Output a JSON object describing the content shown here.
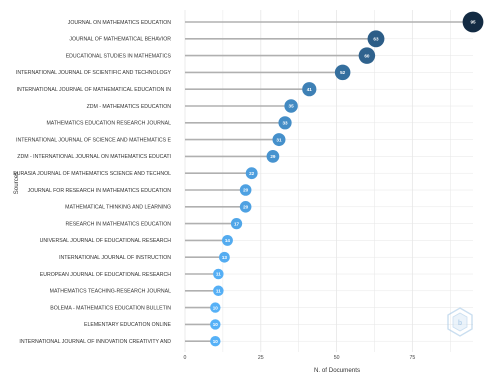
{
  "chart_data": {
    "type": "lollipop",
    "orientation": "horizontal",
    "xlabel": "N. of Documents",
    "ylabel": "Sources",
    "xlim": [
      0,
      95
    ],
    "xticks": [
      0,
      25,
      50,
      75
    ],
    "grid": true,
    "categories": [
      "JOURNAL ON MATHEMATICS EDUCATION",
      "JOURNAL OF MATHEMATICAL BEHAVIOR",
      "EDUCATIONAL STUDIES IN MATHEMATICS",
      "INTERNATIONAL JOURNAL OF SCIENTIFIC AND TECHNOLOGY",
      "INTERNATIONAL JOURNAL OF MATHEMATICAL EDUCATION IN",
      "ZDM - MATHEMATICS EDUCATION",
      "MATHEMATICS EDUCATION RESEARCH JOURNAL",
      "INTERNATIONAL JOURNAL OF SCIENCE AND MATHEMATICS E",
      "ZDM - INTERNATIONAL JOURNAL ON MATHEMATICS EDUCATI",
      "EURASIA JOURNAL OF MATHEMATICS SCIENCE AND TECHNOL",
      "JOURNAL FOR RESEARCH IN MATHEMATICS EDUCATION",
      "MATHEMATICAL THINKING AND LEARNING",
      "RESEARCH IN MATHEMATICS EDUCATION",
      "UNIVERSAL JOURNAL OF EDUCATIONAL RESEARCH",
      "INTERNATIONAL JOURNAL OF INSTRUCTION",
      "EUROPEAN JOURNAL OF EDUCATIONAL RESEARCH",
      "MATHEMATICS TEACHING-RESEARCH JOURNAL",
      "BOLEMA - MATHEMATICS EDUCATION BULLETIN",
      "ELEMENTARY EDUCATION ONLINE",
      "INTERNATIONAL JOURNAL OF INNOVATION CREATIVITY AND"
    ],
    "values": [
      95,
      63,
      60,
      52,
      41,
      35,
      33,
      31,
      29,
      22,
      20,
      20,
      17,
      14,
      13,
      11,
      11,
      10,
      10,
      10
    ],
    "colors": {
      "dark": "#132b43",
      "light": "#56b1f7",
      "stem": "#b0b0b0",
      "grid": "#e6e6e6"
    }
  },
  "watermark": {
    "icon_name": "hexagon-logo-icon",
    "color": "#9fc4e4"
  }
}
